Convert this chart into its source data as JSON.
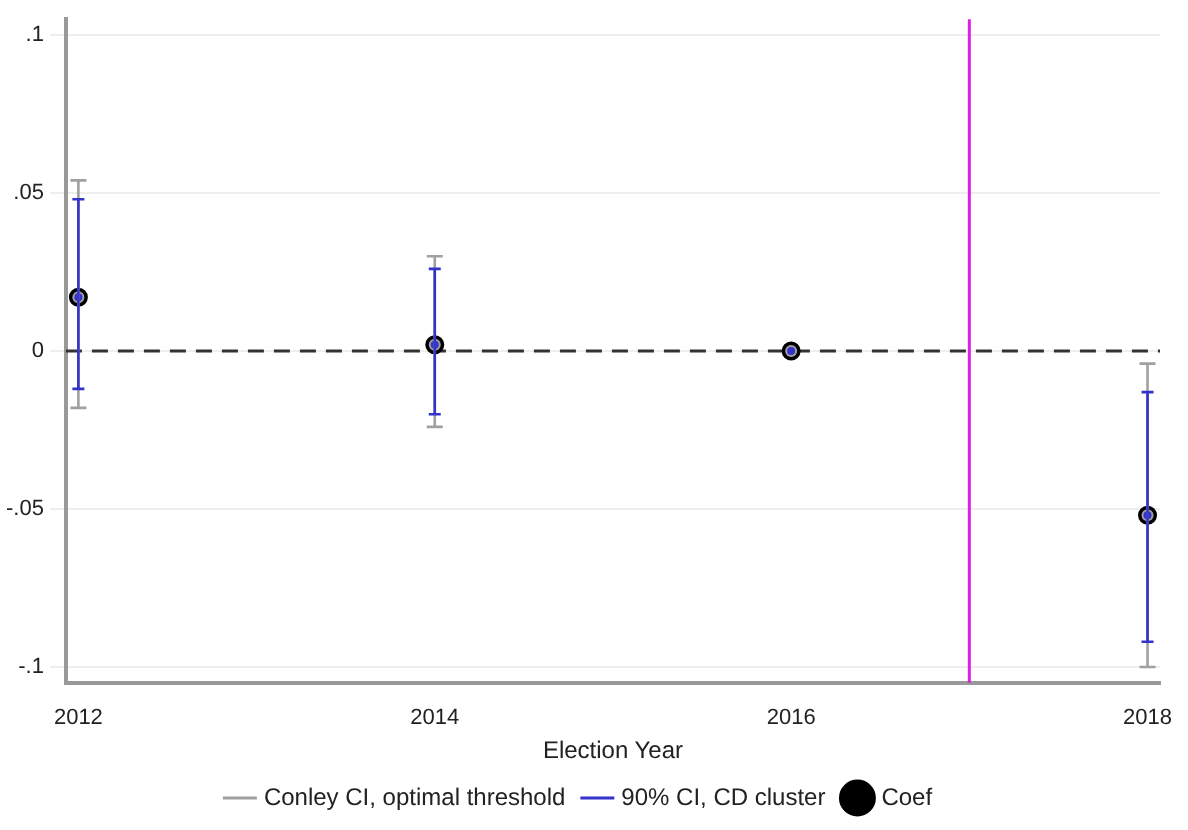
{
  "chart_data": {
    "type": "scatter",
    "xlabel": "Election Year",
    "x": [
      2012,
      2014,
      2016,
      2018
    ],
    "series": [
      {
        "name": "Conley CI, optimal threshold",
        "color": "#a0a0a0",
        "marker": "circle",
        "values": [
          0.017,
          0.002,
          0,
          -0.052
        ],
        "errors": [
          [
            -0.018,
            0.054
          ],
          [
            -0.024,
            0.03
          ],
          null,
          [
            -0.1,
            -0.004
          ]
        ]
      },
      {
        "name": "90% CI, CD cluster",
        "color": "#3333cc",
        "marker": "circle",
        "values": [
          0.017,
          0.002,
          0,
          -0.052
        ],
        "errors": [
          [
            -0.012,
            0.048
          ],
          [
            -0.02,
            0.026
          ],
          null,
          [
            -0.092,
            -0.013
          ]
        ]
      },
      {
        "name": "Coef",
        "color": "#000000",
        "marker": "circle",
        "values": [
          0.017,
          0.002,
          0,
          -0.052
        ]
      }
    ],
    "xlim": [
      2011.93,
      2018.07
    ],
    "xticks": [
      2012,
      2014,
      2016,
      2018
    ],
    "ylim": [
      -0.105,
      0.105
    ],
    "yticks": [
      {
        "value": -0.1,
        "label": "-.1"
      },
      {
        "value": -0.05,
        "label": "-.05"
      },
      0,
      {
        "value": 0.05,
        "label": ".05"
      },
      {
        "value": 0.1,
        "label": ".1"
      }
    ],
    "grid": "y",
    "legend": "bottom",
    "ref_lines": [
      {
        "axis": "y",
        "value": 0,
        "color": "#333333",
        "line_style": "dashed"
      },
      {
        "axis": "x",
        "value": 2017,
        "color": "#e020e0",
        "line_style": "solid"
      }
    ]
  }
}
